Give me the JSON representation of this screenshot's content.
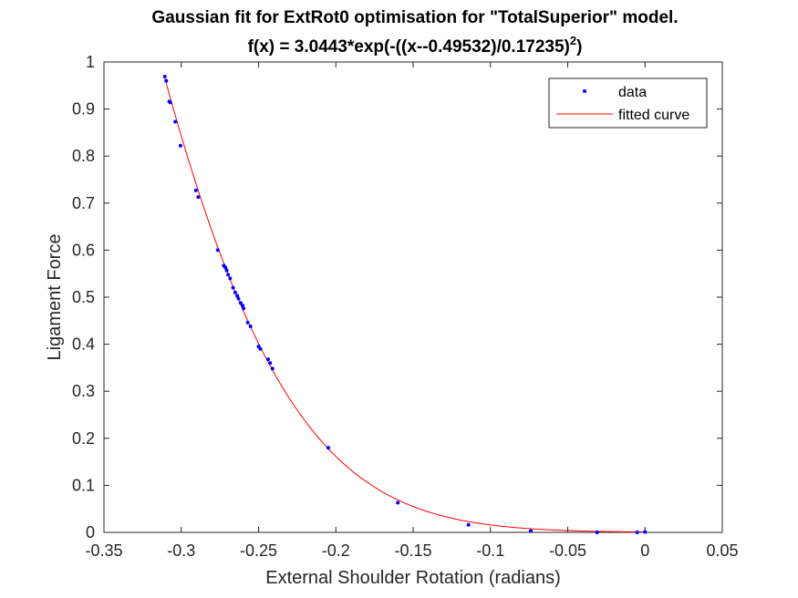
{
  "chart_data": {
    "type": "scatter",
    "title": "Gaussian fit for ExtRot0 optimisation for \"TotalSuperior\" model.",
    "subtitle_prefix": "f(x) = 3.0443*exp(-((x--0.49532)/0.17235)",
    "subtitle_superscript": "2",
    "subtitle_suffix": ")",
    "xlabel": "External Shoulder Rotation (radians)",
    "ylabel": "Ligament Force",
    "xlim": [
      -0.35,
      0.05
    ],
    "ylim": [
      0,
      1
    ],
    "xticks": [
      -0.35,
      -0.3,
      -0.25,
      -0.2,
      -0.15,
      -0.1,
      -0.05,
      0,
      0.05
    ],
    "xtick_labels": [
      "-0.35",
      "-0.3",
      "-0.25",
      "-0.2",
      "-0.15",
      "-0.1",
      "-0.05",
      "0",
      "0.05"
    ],
    "yticks": [
      0,
      0.1,
      0.2,
      0.3,
      0.4,
      0.5,
      0.6,
      0.7,
      0.8,
      0.9,
      1
    ],
    "ytick_labels": [
      "0",
      "0.1",
      "0.2",
      "0.3",
      "0.4",
      "0.5",
      "0.6",
      "0.7",
      "0.8",
      "0.9",
      "1"
    ],
    "grid": false,
    "legend_position": "top-right",
    "series": [
      {
        "name": "data",
        "kind": "markers",
        "color": "#0000ff",
        "points": [
          [
            -0.3106,
            0.969
          ],
          [
            -0.3097,
            0.96
          ],
          [
            -0.3078,
            0.916
          ],
          [
            -0.3071,
            0.914
          ],
          [
            -0.3039,
            0.873
          ],
          [
            -0.3005,
            0.822
          ],
          [
            -0.2905,
            0.727
          ],
          [
            -0.289,
            0.713
          ],
          [
            -0.2764,
            0.6
          ],
          [
            -0.2725,
            0.567
          ],
          [
            -0.2714,
            0.563
          ],
          [
            -0.2706,
            0.557
          ],
          [
            -0.2697,
            0.548
          ],
          [
            -0.2684,
            0.54
          ],
          [
            -0.2665,
            0.52
          ],
          [
            -0.2651,
            0.51
          ],
          [
            -0.2638,
            0.503
          ],
          [
            -0.263,
            0.497
          ],
          [
            -0.2616,
            0.488
          ],
          [
            -0.2603,
            0.482
          ],
          [
            -0.2597,
            0.476
          ],
          [
            -0.257,
            0.446
          ],
          [
            -0.2552,
            0.438
          ],
          [
            -0.25,
            0.395
          ],
          [
            -0.2488,
            0.39
          ],
          [
            -0.2438,
            0.368
          ],
          [
            -0.2425,
            0.36
          ],
          [
            -0.241,
            0.348
          ],
          [
            -0.2049,
            0.18
          ],
          [
            -0.1599,
            0.063
          ],
          [
            -0.1142,
            0.016
          ],
          [
            -0.0739,
            0.003
          ],
          [
            -0.031,
            0.0
          ],
          [
            -0.0051,
            0.0
          ],
          [
            0.0,
            0.001
          ]
        ]
      },
      {
        "name": "fitted curve",
        "kind": "line",
        "color": "#ff0000",
        "model": {
          "a": 3.0443,
          "b": -0.49532,
          "c": 0.17235
        },
        "x_range": [
          -0.3106,
          0.0
        ]
      }
    ]
  }
}
